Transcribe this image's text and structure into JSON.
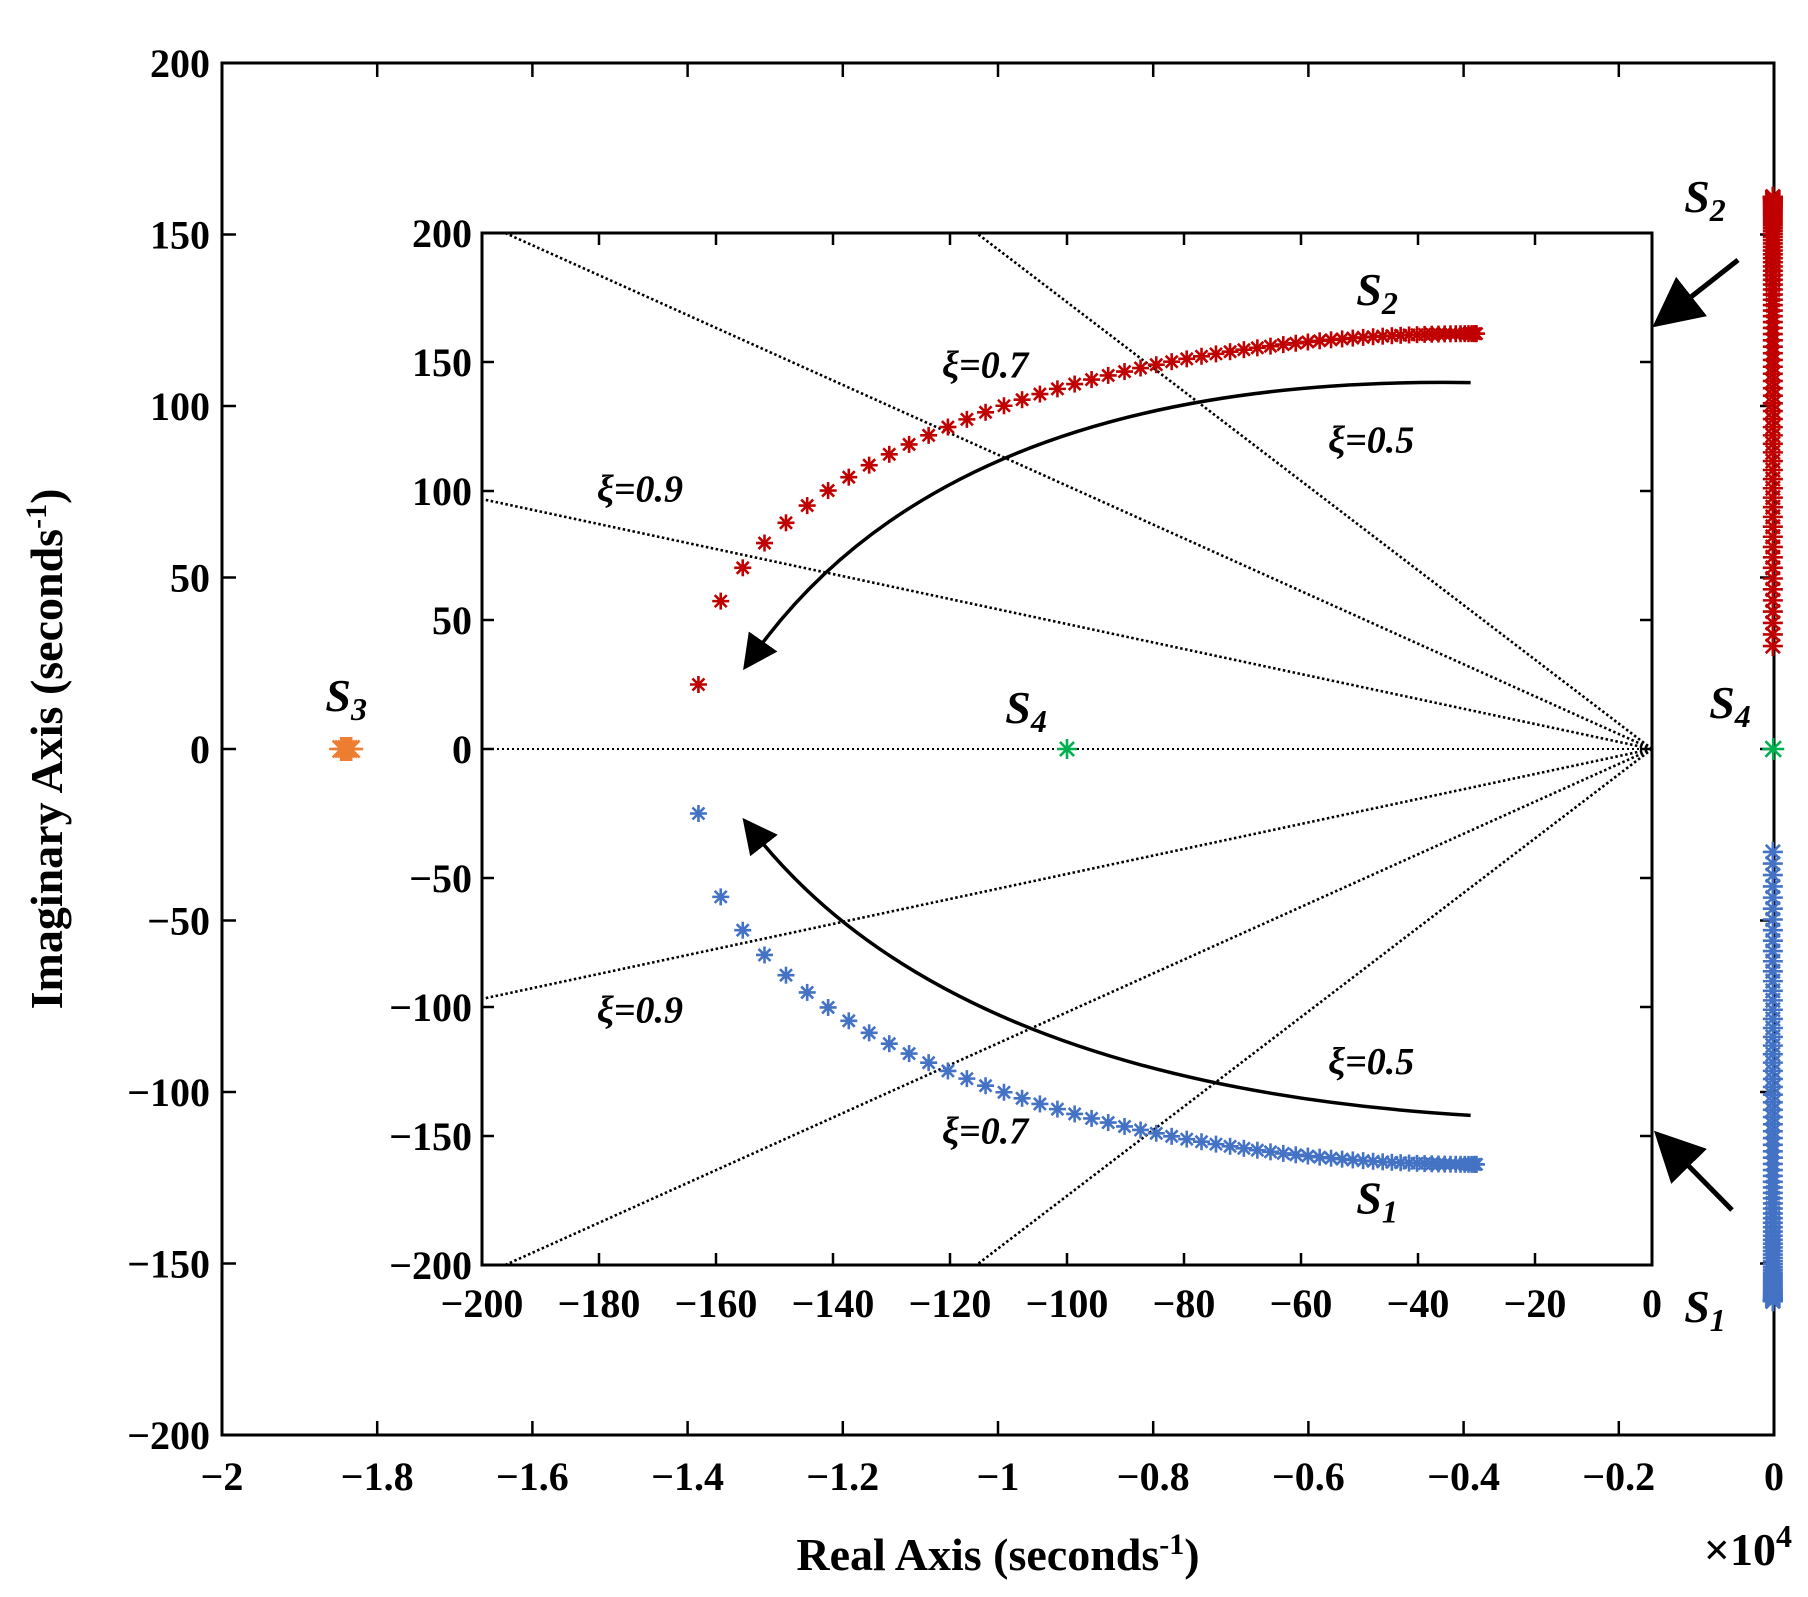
{
  "colors": {
    "S1": "#4472C4",
    "S2": "#C00000",
    "S3": "#ED7D31",
    "S4": "#00B050",
    "guide": "#000000"
  },
  "chart_data": [
    {
      "type": "scatter",
      "title": "",
      "xlabel": "Real Axis (seconds-1)",
      "xlabel_main": "Real Axis (seconds",
      "xlabel_sup": "-1",
      "xlabel_close": ")",
      "ylabel_main": "Imaginary Axis (seconds",
      "ylabel_sup": "-1",
      "ylabel_close": ")",
      "x_multiplier_base": "×10",
      "x_multiplier_exp": "4",
      "xlim": [
        -2,
        0
      ],
      "ylim": [
        -200,
        200
      ],
      "xticks": [
        -2,
        -1.8,
        -1.6,
        -1.4,
        -1.2,
        -1,
        -0.8,
        -0.6,
        -0.4,
        -0.2,
        0
      ],
      "xtick_labels": [
        "−2",
        "−1.8",
        "−1.6",
        "−1.4",
        "−1.2",
        "−1",
        "−0.8",
        "−0.6",
        "−0.4",
        "−0.2",
        "0"
      ],
      "yticks": [
        200,
        150,
        100,
        50,
        0,
        -50,
        -100,
        -150,
        -200
      ],
      "ytick_labels": [
        "200",
        "150",
        "100",
        "50",
        "0",
        "−50",
        "−100",
        "−150",
        "−200"
      ],
      "series": [
        {
          "name": "S3",
          "x": [
            -1.84
          ],
          "y": [
            0
          ]
        },
        {
          "name": "S4",
          "x": [
            -0.001
          ],
          "y": [
            0
          ]
        },
        {
          "name": "S2",
          "x_approx": -0.0015,
          "y_range": [
            30,
            161
          ]
        },
        {
          "name": "S1",
          "x_approx": -0.0015,
          "y_range": [
            -161,
            -30
          ]
        }
      ],
      "labels": [
        {
          "base": "S",
          "sub": "2",
          "x": -0.0075,
          "y": 161
        },
        {
          "base": "S",
          "sub": "1",
          "x": -0.0075,
          "y": -161
        },
        {
          "base": "S",
          "sub": "3",
          "x": -1.84,
          "y": 0
        },
        {
          "base": "S",
          "sub": "4",
          "x": -0.001,
          "y": 0
        }
      ]
    },
    {
      "type": "scatter",
      "title": "",
      "xlabel": "",
      "ylabel": "",
      "inset": true,
      "xlim": [
        -200,
        0
      ],
      "ylim": [
        -200,
        200
      ],
      "xticks": [
        -200,
        -180,
        -160,
        -140,
        -120,
        -100,
        -80,
        -60,
        -40,
        -20,
        0
      ],
      "xtick_labels": [
        "−200",
        "−180",
        "−160",
        "−140",
        "−120",
        "−100",
        "−80",
        "−60",
        "−40",
        "−20",
        "0"
      ],
      "yticks": [
        200,
        150,
        100,
        50,
        0,
        -50,
        -100,
        -150,
        -200
      ],
      "ytick_labels": [
        "200",
        "150",
        "100",
        "50",
        "0",
        "−50",
        "−100",
        "−150",
        "−200"
      ],
      "damping_lines": [
        {
          "label": "ξ=0.9",
          "zeta": 0.9
        },
        {
          "label": "ξ=0.7",
          "zeta": 0.7
        },
        {
          "label": "ξ=0.5",
          "zeta": 0.5
        }
      ],
      "series": [
        {
          "name": "S2",
          "start": [
            -30,
            161
          ],
          "end": [
            -163,
            25
          ],
          "points": 60
        },
        {
          "name": "S1",
          "start": [
            -30,
            -161
          ],
          "end": [
            -163,
            -25
          ],
          "points": 60
        },
        {
          "name": "S4",
          "x": [
            -100
          ],
          "y": [
            0
          ]
        }
      ],
      "labels": [
        {
          "base": "S",
          "sub": "2",
          "x": -47,
          "y": 172
        },
        {
          "base": "S",
          "sub": "1",
          "x": -47,
          "y": -180
        },
        {
          "base": "S",
          "sub": "4",
          "x": -107,
          "y": 10
        }
      ]
    }
  ]
}
